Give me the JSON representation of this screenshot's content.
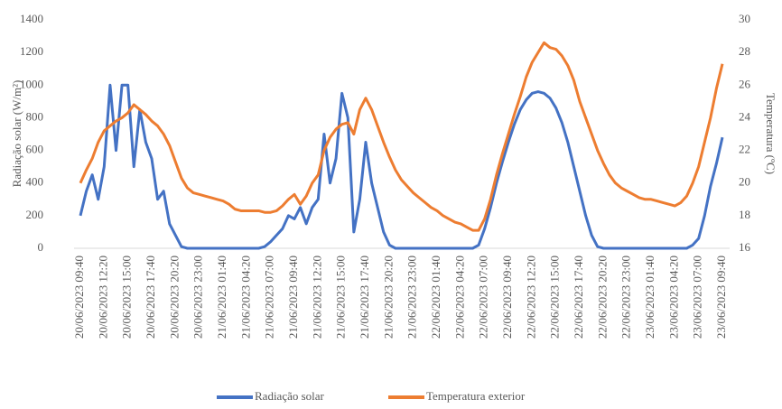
{
  "chart_data": {
    "type": "line",
    "y_label": "Radiação solar (W/m²)",
    "y2_label": "Temperatura (ºC)",
    "categories": [
      "20/06/2023 09:40",
      null,
      null,
      null,
      "20/06/2023 12:20",
      null,
      null,
      null,
      "20/06/2023 15:00",
      null,
      null,
      null,
      "20/06/2023 17:40",
      null,
      null,
      null,
      "20/06/2023 20:20",
      null,
      null,
      null,
      "20/06/2023 23:00",
      null,
      null,
      null,
      "21/06/2023 01:40",
      null,
      null,
      null,
      "21/06/2023 04:20",
      null,
      null,
      null,
      "21/06/2023 07:00",
      null,
      null,
      null,
      "21/06/2023 09:40",
      null,
      null,
      null,
      "21/06/2023 12:20",
      null,
      null,
      null,
      "21/06/2023 15:00",
      null,
      null,
      null,
      "21/06/2023 17:40",
      null,
      null,
      null,
      "21/06/2023 20:20",
      null,
      null,
      null,
      "21/06/2023 23:00",
      null,
      null,
      null,
      "22/06/2023 01:40",
      null,
      null,
      null,
      "22/06/2023 04:20",
      null,
      null,
      null,
      "22/06/2023 07:00",
      null,
      null,
      null,
      "22/06/2023 09:40",
      null,
      null,
      null,
      "22/06/2023 12:20",
      null,
      null,
      null,
      "22/06/2023 15:00",
      null,
      null,
      null,
      "22/06/2023 17:40",
      null,
      null,
      null,
      "22/06/2023 20:20",
      null,
      null,
      null,
      "22/06/2023 23:00",
      null,
      null,
      null,
      "23/06/2023 01:40",
      null,
      null,
      null,
      "23/06/2023 04:20",
      null,
      null,
      null,
      "23/06/2023 07:00",
      null,
      null,
      null,
      "23/06/2023 09:40"
    ],
    "series": [
      {
        "name": "Radiação solar",
        "color": "#4472c4",
        "axis": "y",
        "values": [
          200,
          350,
          450,
          300,
          500,
          1000,
          600,
          1000,
          1000,
          500,
          850,
          650,
          550,
          300,
          350,
          150,
          80,
          10,
          0,
          0,
          0,
          0,
          0,
          0,
          0,
          0,
          0,
          0,
          0,
          0,
          0,
          10,
          40,
          80,
          120,
          200,
          180,
          250,
          150,
          250,
          300,
          700,
          400,
          550,
          950,
          800,
          100,
          300,
          650,
          400,
          250,
          100,
          20,
          0,
          0,
          0,
          0,
          0,
          0,
          0,
          0,
          0,
          0,
          0,
          0,
          0,
          0,
          20,
          120,
          250,
          400,
          530,
          650,
          760,
          850,
          910,
          950,
          960,
          950,
          920,
          860,
          770,
          650,
          500,
          350,
          200,
          80,
          10,
          0,
          0,
          0,
          0,
          0,
          0,
          0,
          0,
          0,
          0,
          0,
          0,
          0,
          0,
          0,
          20,
          60,
          200,
          380,
          520,
          680
        ]
      },
      {
        "name": "Temperatura exterior",
        "color": "#ed7d31",
        "axis": "y2",
        "values": [
          20,
          20.8,
          21.5,
          22.5,
          23.2,
          23.5,
          23.8,
          24,
          24.3,
          24.8,
          24.5,
          24.2,
          23.8,
          23.5,
          23,
          22.3,
          21.3,
          20.3,
          19.7,
          19.4,
          19.3,
          19.2,
          19.1,
          19.0,
          18.9,
          18.7,
          18.4,
          18.3,
          18.3,
          18.3,
          18.3,
          18.2,
          18.2,
          18.3,
          18.6,
          19.0,
          19.3,
          18.7,
          19.2,
          20.0,
          20.5,
          22.0,
          22.8,
          23.3,
          23.6,
          23.7,
          23.0,
          24.5,
          25.2,
          24.5,
          23.5,
          22.5,
          21.6,
          20.8,
          20.2,
          19.8,
          19.4,
          19.1,
          18.8,
          18.5,
          18.3,
          18.0,
          17.8,
          17.6,
          17.5,
          17.3,
          17.1,
          17.1,
          17.8,
          19.0,
          20.5,
          21.8,
          23.0,
          24.2,
          25.3,
          26.5,
          27.4,
          28.0,
          28.6,
          28.3,
          28.2,
          27.8,
          27.2,
          26.3,
          25.0,
          24.0,
          23.0,
          22.0,
          21.2,
          20.5,
          20.0,
          19.7,
          19.5,
          19.3,
          19.1,
          19.0,
          19.0,
          18.9,
          18.8,
          18.7,
          18.6,
          18.8,
          19.2,
          20.0,
          21.0,
          22.5,
          24.0,
          25.8,
          27.3
        ]
      }
    ],
    "ylim": [
      0,
      1400
    ],
    "yticks": [
      0,
      200,
      400,
      600,
      800,
      1000,
      1200,
      1400
    ],
    "y2lim": [
      16,
      30
    ],
    "y2ticks": [
      16,
      18,
      20,
      22,
      24,
      26,
      28,
      30
    ],
    "grid": false,
    "legend": "bottom"
  }
}
